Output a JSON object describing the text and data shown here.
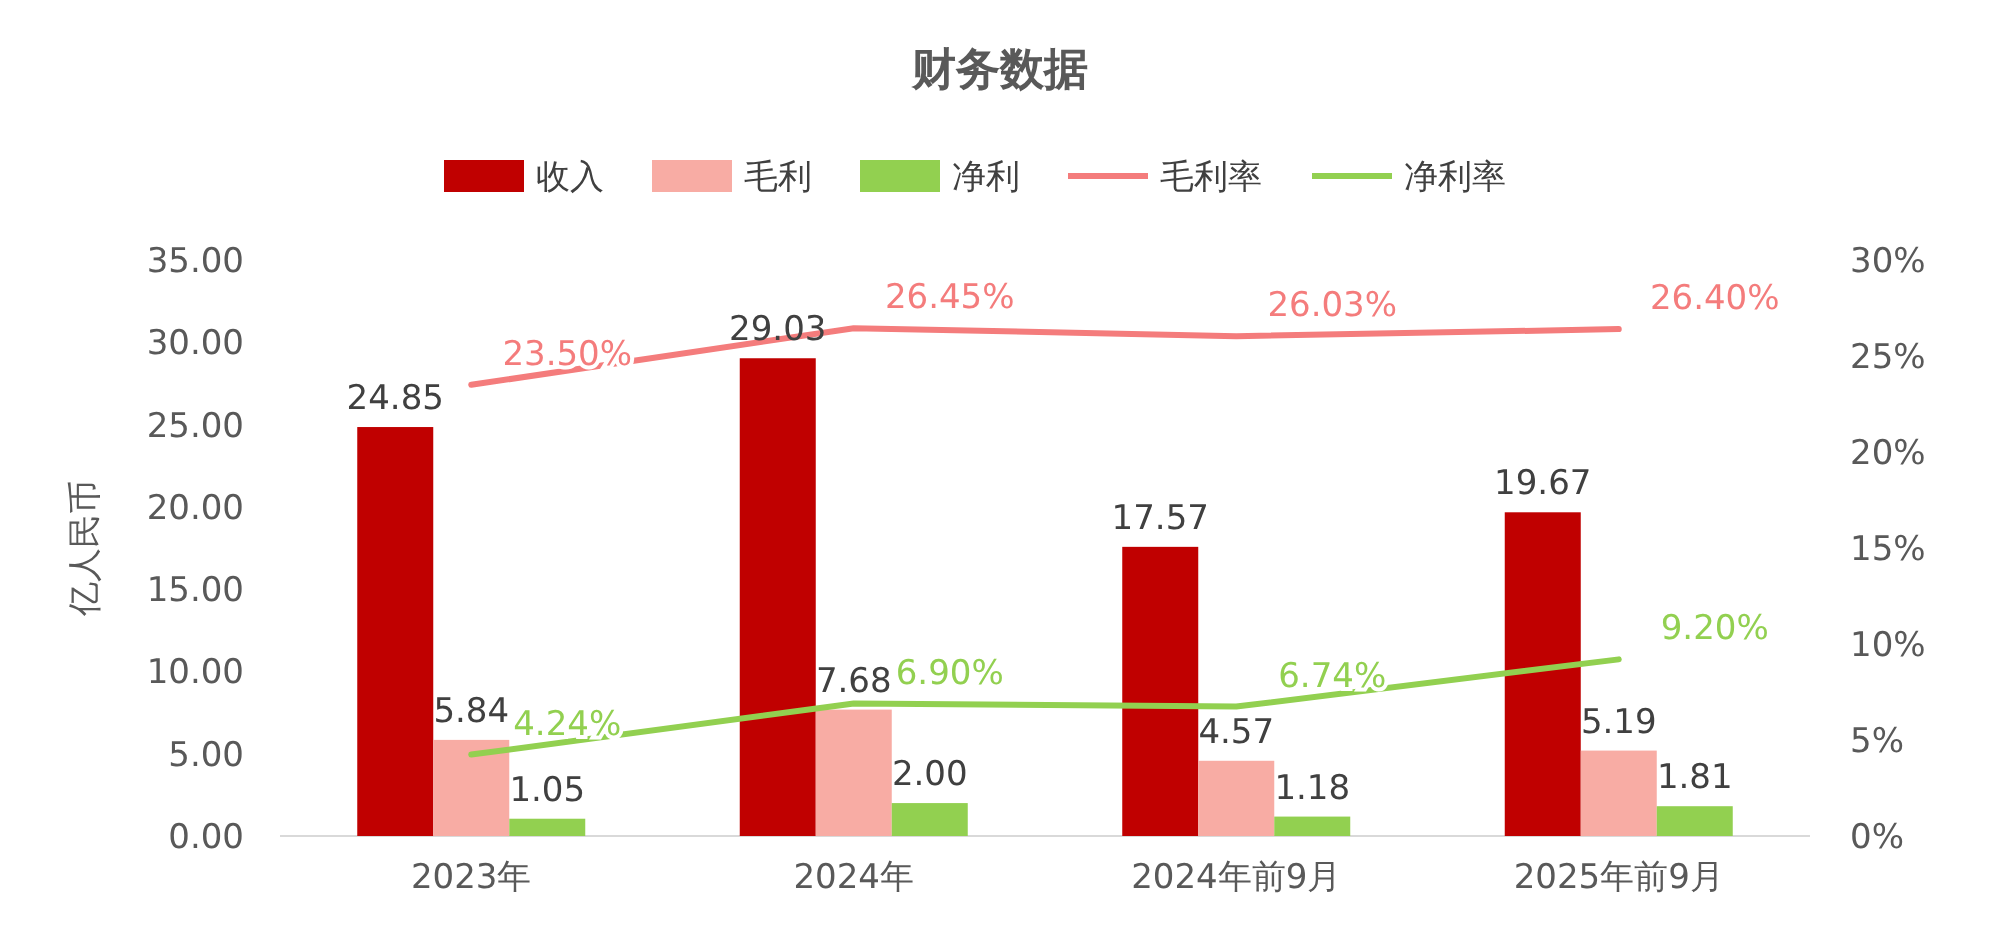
{
  "chart_data": {
    "type": "bar",
    "title": "财务数据",
    "ylabel": "亿人民币",
    "categories": [
      "2023年",
      "2024年",
      "2024年前9月",
      "2025年前9月"
    ],
    "series": [
      {
        "name": "收入",
        "color": "#c00000",
        "values": [
          24.85,
          29.03,
          17.57,
          19.67
        ]
      },
      {
        "name": "毛利",
        "color": "#f8aca4",
        "values": [
          5.84,
          7.68,
          4.57,
          5.19
        ]
      },
      {
        "name": "净利",
        "color": "#92d050",
        "values": [
          1.05,
          2.0,
          1.18,
          1.81
        ],
        "value_labels": [
          "1.05",
          "2.00",
          "1.18",
          "1.81"
        ]
      },
      {
        "name": "毛利率",
        "type": "line",
        "axis": "y2",
        "color": "#f47c7c",
        "values": [
          23.5,
          26.45,
          26.03,
          26.4
        ],
        "value_labels": [
          "23.50%",
          "26.45%",
          "26.03%",
          "26.40%"
        ]
      },
      {
        "name": "净利率",
        "type": "line",
        "axis": "y2",
        "color": "#92d050",
        "values": [
          4.24,
          6.9,
          6.74,
          9.2
        ],
        "value_labels": [
          "4.24%",
          "6.90%",
          "6.74%",
          "9.20%"
        ]
      }
    ],
    "ylim": [
      0,
      35
    ],
    "yticks": [
      {
        "value": 0,
        "label": "0.00"
      },
      {
        "value": 5,
        "label": "5.00"
      },
      {
        "value": 10,
        "label": "10.00"
      },
      {
        "value": 15,
        "label": "15.00"
      },
      {
        "value": 20,
        "label": "20.00"
      },
      {
        "value": 25,
        "label": "25.00"
      },
      {
        "value": 30,
        "label": "30.00"
      },
      {
        "value": 35,
        "label": "35.00"
      }
    ],
    "y2lim": [
      0,
      30
    ],
    "y2ticks": [
      {
        "value": 0,
        "label": "0%"
      },
      {
        "value": 5,
        "label": "5%"
      },
      {
        "value": 10,
        "label": "10%"
      },
      {
        "value": 15,
        "label": "15%"
      },
      {
        "value": 20,
        "label": "20%"
      },
      {
        "value": 25,
        "label": "25%"
      },
      {
        "value": 30,
        "label": "30%"
      }
    ],
    "data_labels": true,
    "legend": "top",
    "grid": false,
    "marker": "none"
  }
}
